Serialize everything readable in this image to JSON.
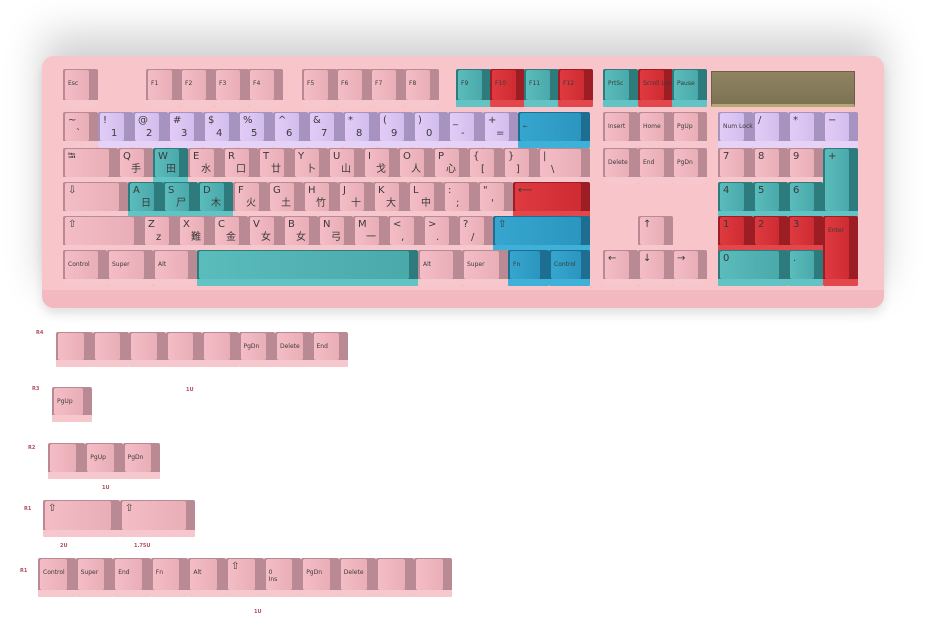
{
  "colors": {
    "case": "#f8c5cb",
    "pink": "#f2b8c0",
    "purple": "#dcc6f2",
    "teal": "#55b5b5",
    "red": "#d93339",
    "blue": "#34a3cc",
    "lcd": "#8a7f5a"
  },
  "keyboard": {
    "function_row": [
      {
        "main": "Esc",
        "color": "pink"
      },
      {
        "main": "F1",
        "color": "pink"
      },
      {
        "main": "F2",
        "color": "pink"
      },
      {
        "main": "F3",
        "color": "pink"
      },
      {
        "main": "F4",
        "color": "pink"
      },
      {
        "main": "F5",
        "color": "pink"
      },
      {
        "main": "F6",
        "color": "pink"
      },
      {
        "main": "F7",
        "color": "pink"
      },
      {
        "main": "F8",
        "color": "pink"
      },
      {
        "main": "F9",
        "color": "teal"
      },
      {
        "main": "F10",
        "color": "red"
      },
      {
        "main": "F11",
        "color": "teal"
      },
      {
        "main": "F12",
        "color": "red"
      },
      {
        "main": "PrtSc",
        "color": "teal"
      },
      {
        "main": "Scroll Lock",
        "color": "red"
      },
      {
        "main": "Pause",
        "color": "teal"
      }
    ],
    "number_row": [
      {
        "main": "~",
        "sub": "`",
        "color": "pink"
      },
      {
        "main": "!",
        "sub": "1",
        "color": "purple"
      },
      {
        "main": "@",
        "sub": "2",
        "color": "purple"
      },
      {
        "main": "#",
        "sub": "3",
        "color": "purple"
      },
      {
        "main": "$",
        "sub": "4",
        "color": "purple"
      },
      {
        "main": "%",
        "sub": "5",
        "color": "purple"
      },
      {
        "main": "^",
        "sub": "6",
        "color": "purple"
      },
      {
        "main": "&",
        "sub": "7",
        "color": "purple"
      },
      {
        "main": "*",
        "sub": "8",
        "color": "purple"
      },
      {
        "main": "(",
        "sub": "9",
        "color": "purple"
      },
      {
        "main": ")",
        "sub": "0",
        "color": "purple"
      },
      {
        "main": "_",
        "sub": "-",
        "color": "purple"
      },
      {
        "main": "+",
        "sub": "=",
        "color": "purple"
      },
      {
        "main": "←",
        "color": "blue"
      },
      {
        "main": "Insert",
        "color": "pink"
      },
      {
        "main": "Home",
        "color": "pink"
      },
      {
        "main": "PgUp",
        "color": "pink"
      },
      {
        "main": "Num Lock",
        "color": "purple"
      },
      {
        "main": "/",
        "color": "purple"
      },
      {
        "main": "*",
        "color": "purple"
      },
      {
        "main": "−",
        "color": "purple"
      }
    ],
    "tab_row": [
      {
        "main": "⭾",
        "color": "pink"
      },
      {
        "main": "Q",
        "sub": "手",
        "color": "pink"
      },
      {
        "main": "W",
        "sub": "田",
        "color": "teal"
      },
      {
        "main": "E",
        "sub": "水",
        "color": "pink"
      },
      {
        "main": "R",
        "sub": "口",
        "color": "pink"
      },
      {
        "main": "T",
        "sub": "廿",
        "color": "pink"
      },
      {
        "main": "Y",
        "sub": "卜",
        "color": "pink"
      },
      {
        "main": "U",
        "sub": "山",
        "color": "pink"
      },
      {
        "main": "I",
        "sub": "戈",
        "color": "pink"
      },
      {
        "main": "O",
        "sub": "人",
        "color": "pink"
      },
      {
        "main": "P",
        "sub": "心",
        "color": "pink"
      },
      {
        "main": "{",
        "sub": "[",
        "color": "pink"
      },
      {
        "main": "}",
        "sub": "]",
        "color": "pink"
      },
      {
        "main": "|",
        "sub": "\\",
        "color": "pink"
      },
      {
        "main": "Delete",
        "color": "pink"
      },
      {
        "main": "End",
        "color": "pink"
      },
      {
        "main": "PgDn",
        "color": "pink"
      },
      {
        "main": "7",
        "color": "pink"
      },
      {
        "main": "8",
        "color": "pink"
      },
      {
        "main": "9",
        "color": "pink"
      },
      {
        "main": "+",
        "color": "teal"
      }
    ],
    "caps_row": [
      {
        "main": "⇩",
        "color": "pink"
      },
      {
        "main": "A",
        "sub": "日",
        "color": "teal"
      },
      {
        "main": "S",
        "sub": "尸",
        "color": "teal"
      },
      {
        "main": "D",
        "sub": "木",
        "color": "teal"
      },
      {
        "main": "F",
        "sub": "火",
        "color": "pink"
      },
      {
        "main": "G",
        "sub": "土",
        "color": "pink"
      },
      {
        "main": "H",
        "sub": "竹",
        "color": "pink"
      },
      {
        "main": "J",
        "sub": "十",
        "color": "pink"
      },
      {
        "main": "K",
        "sub": "大",
        "color": "pink"
      },
      {
        "main": "L",
        "sub": "中",
        "color": "pink"
      },
      {
        "main": ":",
        "sub": ";",
        "color": "pink"
      },
      {
        "main": "\"",
        "sub": "'",
        "color": "pink"
      },
      {
        "main": "⟵",
        "color": "red"
      },
      {
        "main": "4",
        "color": "teal"
      },
      {
        "main": "5",
        "color": "teal"
      },
      {
        "main": "6",
        "color": "teal"
      }
    ],
    "shift_row": [
      {
        "main": "⇧",
        "color": "pink"
      },
      {
        "main": "Z",
        "sub": "z",
        "color": "pink"
      },
      {
        "main": "X",
        "sub": "難",
        "color": "pink"
      },
      {
        "main": "C",
        "sub": "金",
        "color": "pink"
      },
      {
        "main": "V",
        "sub": "女",
        "color": "pink"
      },
      {
        "main": "B",
        "sub": "女",
        "color": "pink"
      },
      {
        "main": "N",
        "sub": "弓",
        "color": "pink"
      },
      {
        "main": "M",
        "sub": "一",
        "color": "pink"
      },
      {
        "main": "<",
        "sub": ",",
        "color": "pink"
      },
      {
        "main": ">",
        "sub": ".",
        "color": "pink"
      },
      {
        "main": "?",
        "sub": "/",
        "color": "pink"
      },
      {
        "main": "⇧",
        "color": "blue"
      },
      {
        "main": "↑",
        "color": "pink"
      },
      {
        "main": "1",
        "color": "red"
      },
      {
        "main": "2",
        "color": "red"
      },
      {
        "main": "3",
        "color": "red"
      },
      {
        "main": "Enter",
        "color": "red"
      }
    ],
    "bottom_row": [
      {
        "main": "Control",
        "color": "pink"
      },
      {
        "main": "Super",
        "color": "pink"
      },
      {
        "main": "Alt",
        "color": "pink"
      },
      {
        "main": "",
        "color": "teal"
      },
      {
        "main": "Alt",
        "color": "pink"
      },
      {
        "main": "Super",
        "color": "pink"
      },
      {
        "main": "Fn",
        "color": "blue"
      },
      {
        "main": "Control",
        "color": "blue"
      },
      {
        "main": "←",
        "color": "pink"
      },
      {
        "main": "↓",
        "color": "pink"
      },
      {
        "main": "→",
        "color": "pink"
      },
      {
        "main": "0",
        "color": "teal"
      },
      {
        "main": ".",
        "color": "teal"
      }
    ]
  },
  "extras": {
    "groups": [
      {
        "row": "R4",
        "size": "",
        "keys": [
          {
            "main": ""
          },
          {
            "main": ""
          },
          {
            "main": ""
          },
          {
            "main": ""
          },
          {
            "main": ""
          },
          {
            "main": "PgDn"
          },
          {
            "main": "Delete"
          },
          {
            "main": "End"
          }
        ]
      },
      {
        "row": "R3",
        "size": "1U",
        "keys": [
          {
            "main": "PgUp"
          }
        ]
      },
      {
        "row": "R2",
        "size": "1U",
        "keys": [
          {
            "main": ""
          },
          {
            "main": "PgUp"
          },
          {
            "main": "PgDn"
          }
        ]
      },
      {
        "row": "R1",
        "size": "2U",
        "size2": "1.75U",
        "keys": [
          {
            "main": "⇧"
          },
          {
            "main": "⇧"
          }
        ]
      },
      {
        "row": "R1",
        "size": "1U",
        "keys": [
          {
            "main": "Control"
          },
          {
            "main": "Super"
          },
          {
            "main": "End"
          },
          {
            "main": "Fn"
          },
          {
            "main": "Alt"
          },
          {
            "main": "⇧"
          },
          {
            "main": "0",
            "sub": "Ins"
          },
          {
            "main": "PgDn"
          },
          {
            "main": "Delete"
          },
          {
            "main": ""
          },
          {
            "main": ""
          }
        ]
      }
    ]
  }
}
